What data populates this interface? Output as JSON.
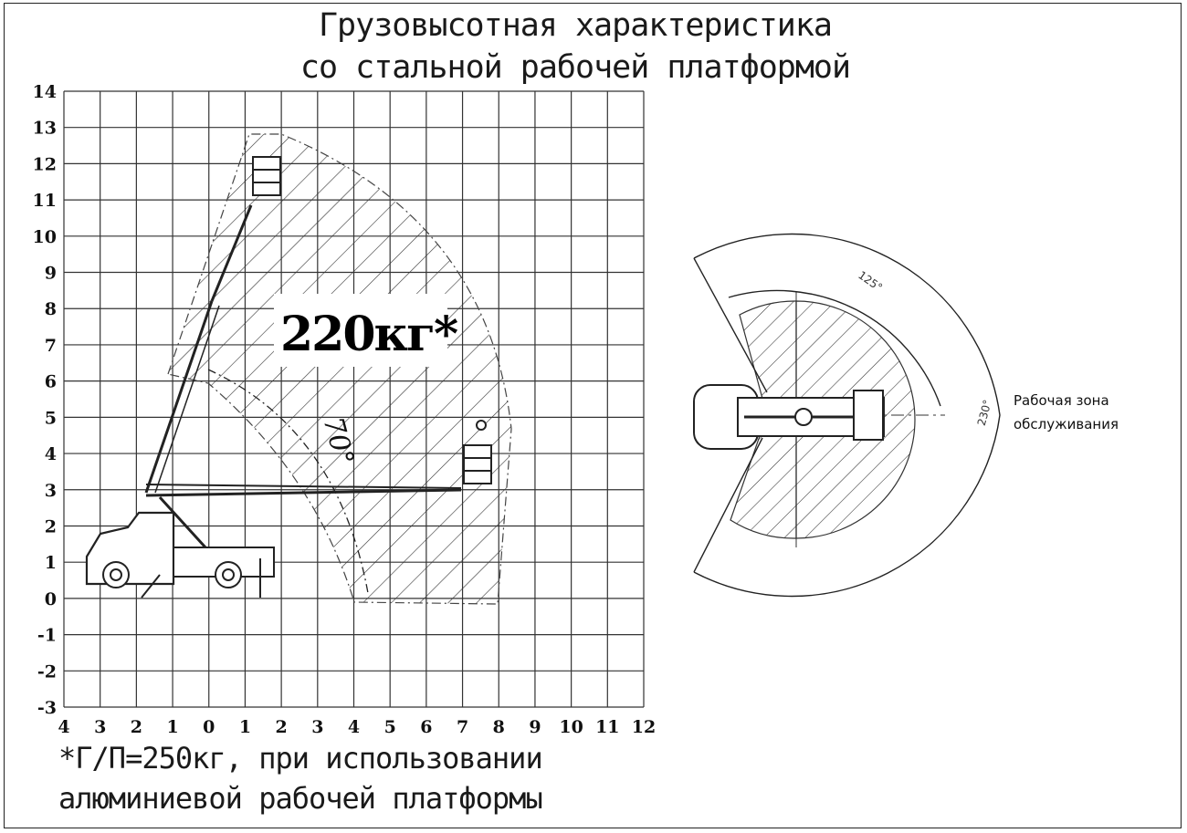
{
  "title": {
    "line1": "Грузовысотная характеристика",
    "line2": "со стальной рабочей платформой"
  },
  "chart": {
    "y_ticks": [
      "14",
      "13",
      "12",
      "11",
      "10",
      "9",
      "8",
      "7",
      "6",
      "5",
      "4",
      "3",
      "2",
      "1",
      "0",
      "-1",
      "-2",
      "-3"
    ],
    "x_ticks": [
      "4",
      "3",
      "2",
      "1",
      "0",
      "1",
      "2",
      "3",
      "4",
      "5",
      "6",
      "7",
      "8",
      "9",
      "10",
      "11",
      "12"
    ],
    "load_label": "220кг*",
    "angle_label": "70°"
  },
  "top_view": {
    "zone_label_line1": "Рабочая зона",
    "zone_label_line2": "обслуживания",
    "angle_small": "125°",
    "angle_large": "230°"
  },
  "footnote": {
    "line1": "*Г/П=250кг, при использовании",
    "line2": "алюминиевой рабочей платформы"
  },
  "colors": {
    "ink": "#111111",
    "grid": "#333333",
    "background": "#ffffff"
  }
}
